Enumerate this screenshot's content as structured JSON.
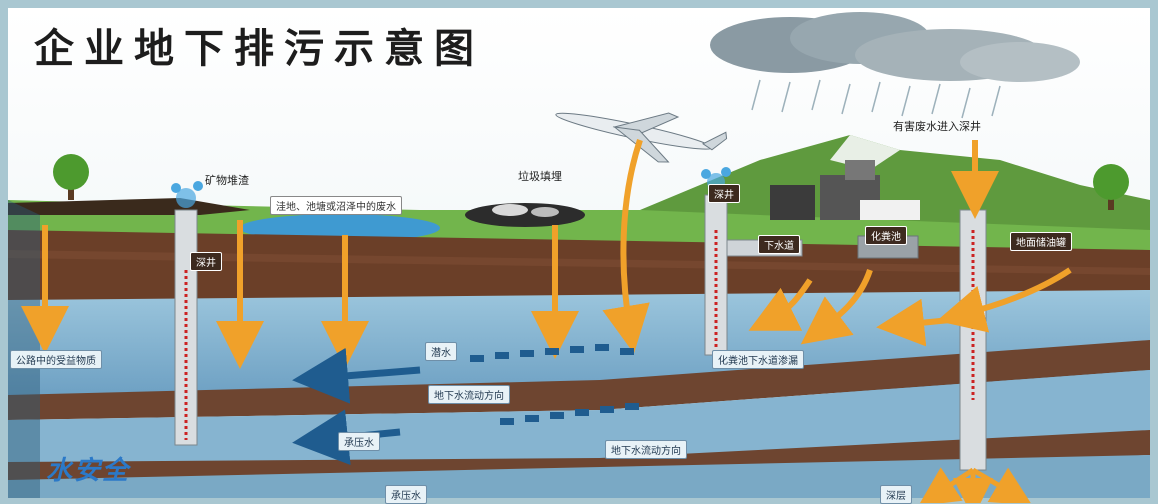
{
  "title": "企业地下排污示意图",
  "labels": {
    "mineral_residue": "矿物堆渣",
    "garbage_landfill": "垃圾填埋",
    "hazardous_wastewater": "有害废水进入深井",
    "pit_wastewater": "洼地、池塘或沼泽中的废水",
    "deep_well_top": "深井",
    "deep_well_mid": "深井",
    "sewer_pipe": "下水道",
    "septic_tank": "化粪池",
    "underground_tank": "地面储油罐",
    "road_pollutants": "公路中的受益物质",
    "water_table": "潜水",
    "septic_sewer_leak": "化粪池下水道渗漏",
    "groundwater_flow_1": "地下水流动方向",
    "confined_water_1": "承压水",
    "groundwater_flow_2": "地下水流动方向",
    "confined_water_2": "承压水",
    "deep_layer": "深层"
  },
  "logo": "水安全",
  "colors": {
    "sky": "#a9c7d1",
    "grass": "#6fb24a",
    "soil": "#6b3f28",
    "aquifer": "#7fb1cf",
    "arrow": "#f0a12a",
    "flow_arrow": "#1f5c8f"
  }
}
